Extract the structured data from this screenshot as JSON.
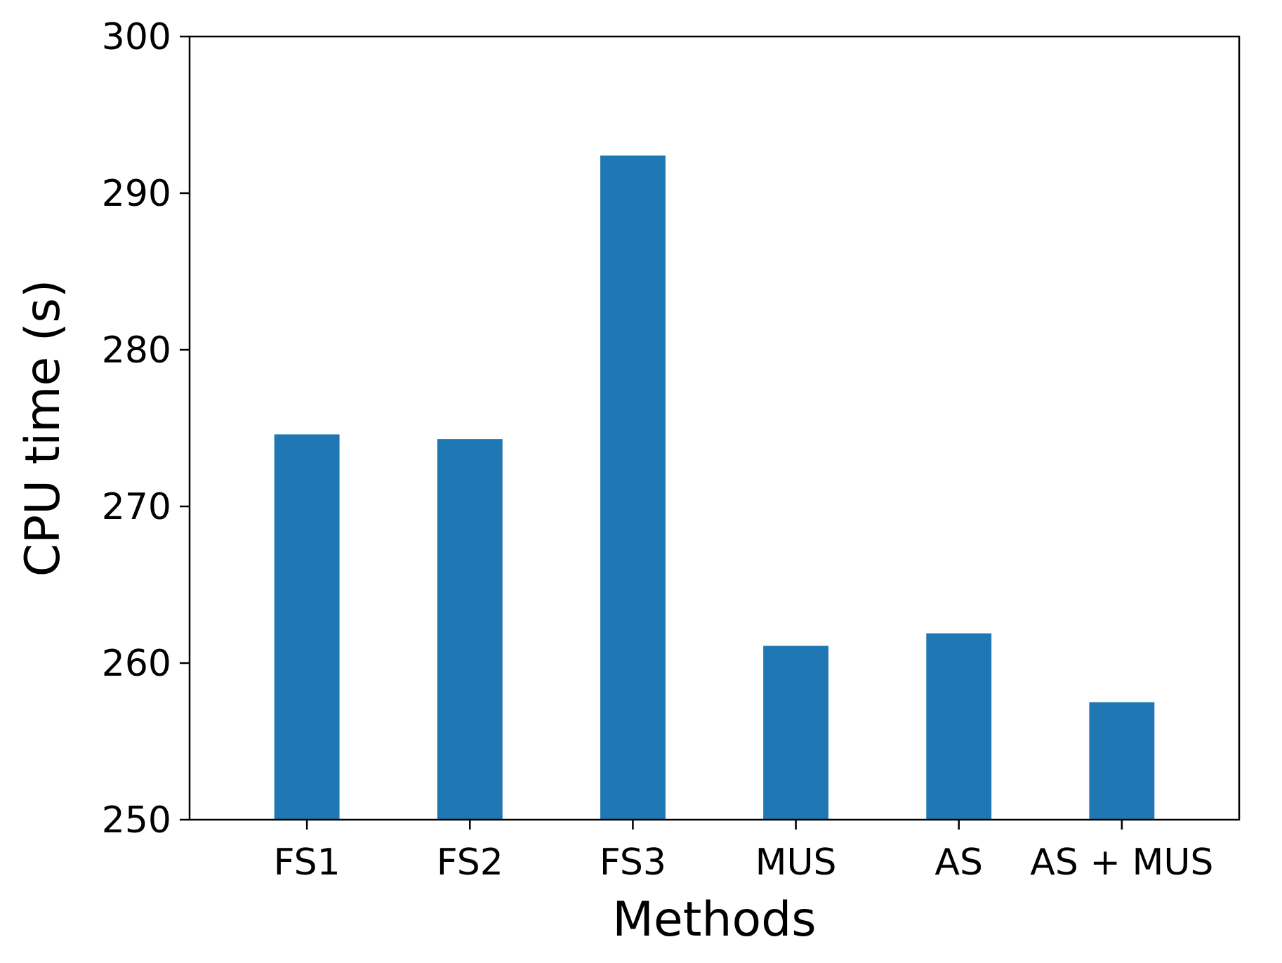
{
  "chart_data": {
    "type": "bar",
    "title": "",
    "xlabel": "Methods",
    "ylabel": "CPU time (s)",
    "categories": [
      "FS1",
      "FS2",
      "FS3",
      "MUS",
      "AS",
      "AS + MUS"
    ],
    "values": [
      274.6,
      274.3,
      292.4,
      261.1,
      261.9,
      257.5
    ],
    "ylim": [
      250,
      300
    ],
    "yticks": [
      250,
      260,
      270,
      280,
      290,
      300
    ],
    "bar_color": "#1f77b4",
    "grid": false,
    "legend": "none"
  }
}
